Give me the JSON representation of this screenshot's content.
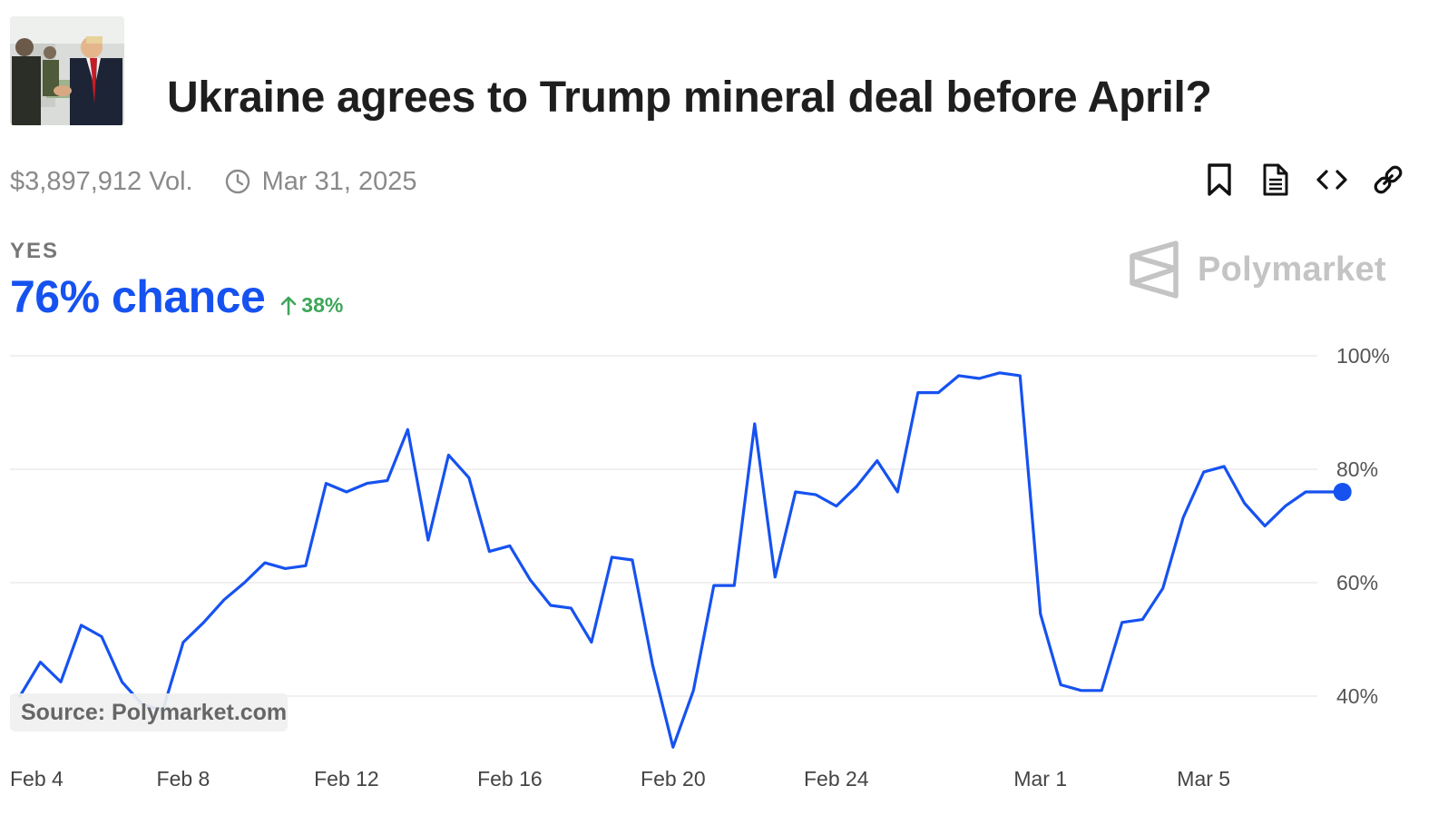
{
  "header": {
    "title": "Ukraine agrees to Trump mineral deal before April?",
    "volume": "$3,897,912 Vol.",
    "end_date": "Mar 31, 2025"
  },
  "actions": {
    "icons": [
      "bookmark-icon",
      "document-icon",
      "embed-code-icon",
      "link-icon"
    ]
  },
  "outcome": {
    "label": "YES",
    "chance": "76% chance",
    "change": "38%",
    "change_icon": "arrow-up-icon"
  },
  "brand": {
    "name": "Polymarket"
  },
  "source": "Source: Polymarket.com",
  "colors": {
    "accent": "#1652f0",
    "positive": "#3fa65a",
    "muted": "#8a8a8a",
    "grid": "#e6e6e6",
    "brand_gray": "#c4c4c4"
  },
  "chart_data": {
    "type": "line",
    "title": "Ukraine agrees to Trump mineral deal before April?",
    "xlabel": "",
    "ylabel": "",
    "grid": true,
    "ylim": [
      30,
      100
    ],
    "y_ticks": [
      40,
      60,
      80,
      100
    ],
    "y_tick_labels": [
      "40%",
      "60%",
      "80%",
      "100%"
    ],
    "x_range": [
      0,
      32.5
    ],
    "x_ticks": [
      0,
      4,
      8,
      12,
      16,
      20,
      25,
      29
    ],
    "x_tick_labels": [
      "Feb 4",
      "Feb 8",
      "Feb 12",
      "Feb 16",
      "Feb 20",
      "Feb 24",
      "Mar 1",
      "Mar 5"
    ],
    "series": [
      {
        "name": "Yes",
        "x": [
          0.0,
          0.5,
          0.5,
          1.0,
          1.5,
          2.0,
          2.5,
          3.0,
          3.5,
          4.0,
          4.5,
          5.0,
          5.5,
          6.0,
          6.5,
          7.0,
          7.5,
          8.0,
          8.5,
          9.0,
          9.5,
          10.0,
          10.5,
          11.0,
          11.5,
          12.0,
          12.5,
          13.0,
          13.5,
          14.0,
          14.5,
          15.0,
          15.5,
          16.0,
          16.5,
          17.0,
          17.5,
          18.0,
          18.5,
          19.0,
          19.5,
          20.0,
          20.5,
          21.0,
          21.5,
          22.0,
          22.5,
          23.0,
          23.5,
          24.0,
          24.5,
          25.0,
          25.5,
          26.0,
          26.5,
          27.0,
          27.5,
          28.0,
          28.5,
          29.0,
          29.5,
          30.0,
          30.5,
          31.0,
          31.5,
          32.0
        ],
        "values": [
          40,
          46,
          46,
          42.5,
          52.5,
          50.5,
          42.5,
          38.5,
          37.5,
          49.5,
          53,
          57,
          60,
          63.5,
          62.5,
          63,
          77.5,
          76,
          77.5,
          78,
          87,
          67.5,
          82.5,
          78.5,
          65.5,
          66.5,
          60.5,
          56,
          55.5,
          49.5,
          64.5,
          64,
          45.5,
          31,
          41,
          59.5,
          59.5,
          88,
          61,
          76,
          75.5,
          73.5,
          77,
          81.5,
          76,
          93.5,
          93.5,
          96.5,
          96,
          97,
          96.5,
          54.5,
          42,
          41,
          41,
          53,
          53.5,
          59,
          71.5,
          79.5,
          80.5,
          74,
          70,
          73.5,
          76,
          76
        ]
      }
    ]
  }
}
